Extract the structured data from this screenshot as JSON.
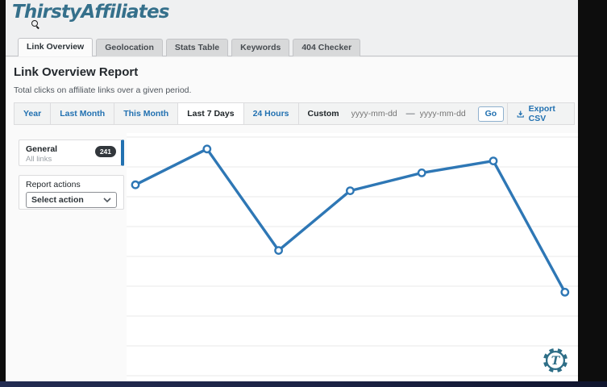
{
  "window": {
    "logo": "ThirstyAffiliates"
  },
  "tabs": [
    {
      "label": "Link Overview",
      "active": true
    },
    {
      "label": "Geolocation",
      "active": false
    },
    {
      "label": "Stats Table",
      "active": false
    },
    {
      "label": "Keywords",
      "active": false
    },
    {
      "label": "404 Checker",
      "active": false
    }
  ],
  "report": {
    "title": "Link Overview Report",
    "subtitle": "Total clicks on affiliate links over a given period."
  },
  "filterbar": {
    "presets": [
      {
        "label": "Year",
        "active": false
      },
      {
        "label": "Last Month",
        "active": false
      },
      {
        "label": "This Month",
        "active": false
      },
      {
        "label": "Last 7 Days",
        "active": true
      },
      {
        "label": "24 Hours",
        "active": false
      },
      {
        "label": "Custom",
        "active": false
      }
    ],
    "date_from_placeholder": "yyyy-mm-dd",
    "date_range_separator": "—",
    "date_to_placeholder": "yyyy-mm-dd",
    "go_button": "Go",
    "export_csv": "Export CSV"
  },
  "sidebar": {
    "general_card": {
      "title": "General",
      "subtitle": "All links",
      "count_badge": "241"
    },
    "actions_card": {
      "label": "Report actions",
      "selected_action": "Select action"
    }
  },
  "chart_data": {
    "type": "line",
    "x": [
      1,
      2,
      3,
      4,
      5,
      6,
      7
    ],
    "values": [
      32,
      38,
      21,
      31,
      34,
      36,
      14
    ],
    "title": "",
    "xlabel": "",
    "ylabel": "",
    "ylim": [
      0,
      40
    ],
    "gridlines": "horizontal",
    "gridline_step": 5,
    "legend": "none",
    "axis_tick_labels_visible": false,
    "line_color": "#2e77b5",
    "marker": "open-circle"
  },
  "colors": {
    "brand_teal": "#35708b",
    "wp_blue": "#2271b1",
    "line_blue": "#2e77b5",
    "badge_dark": "#32373c",
    "bottom_bar_navy": "#1b2244"
  }
}
